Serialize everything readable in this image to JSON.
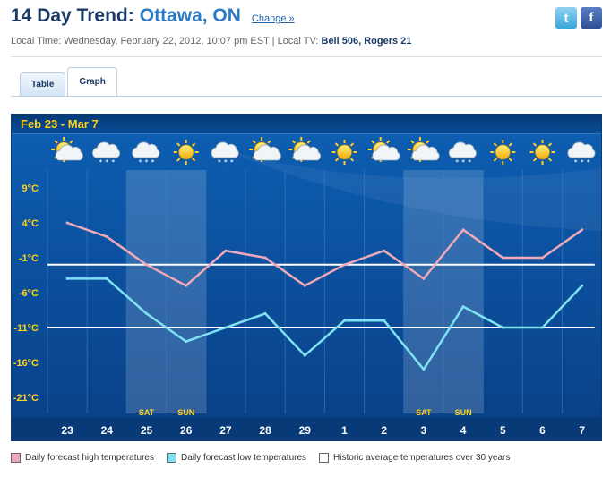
{
  "header": {
    "title_prefix": "14 Day Trend:",
    "city": "Ottawa, ON",
    "change_label": "Change »",
    "local_time": "Local Time: Wednesday, February 22, 2012, 10:07 pm EST  |  Local TV:",
    "local_tv": "Bell 506, Rogers 21"
  },
  "social": {
    "twitter_label": "t",
    "facebook_label": "f"
  },
  "tabs": [
    {
      "label": "Table",
      "active": false
    },
    {
      "label": "Graph",
      "active": true
    }
  ],
  "colors": {
    "chart_bg": "#0a4f9c",
    "high_line": "#f0a9b8",
    "low_line": "#7fe2f2",
    "avg_line": "#ffffff",
    "title_yellow": "#ffd21a",
    "weekend_label": "#ffd21a"
  },
  "chart_data": {
    "type": "line",
    "title": "Feb 23  -  Mar 7",
    "x": [
      "23",
      "24",
      "25",
      "26",
      "27",
      "28",
      "29",
      "1",
      "2",
      "3",
      "4",
      "5",
      "6",
      "7"
    ],
    "weekend_labels": [
      "",
      "",
      "SAT",
      "SUN",
      "",
      "",
      "",
      "",
      "",
      "SAT",
      "SUN",
      "",
      "",
      ""
    ],
    "icons": [
      "partly-cloudy-icon",
      "snow-icon",
      "snow-icon",
      "sun-icon",
      "snow-icon",
      "partly-cloudy-icon",
      "partly-cloudy-icon",
      "sun-icon",
      "partly-cloudy-icon",
      "partly-cloudy-icon",
      "snow-icon",
      "sun-icon",
      "sun-icon",
      "snow-icon"
    ],
    "y_ticks": [
      "9°C",
      "4°C",
      "-1°C",
      "-6°C",
      "-11°C",
      "-16°C",
      "-21°C"
    ],
    "ylim": [
      -21,
      9
    ],
    "series": [
      {
        "name": "Daily forecast high temperatures",
        "values": [
          4,
          2,
          -2,
          -5,
          0,
          -1,
          -5,
          -2,
          0,
          -4,
          3,
          -1,
          -1,
          3
        ]
      },
      {
        "name": "Daily forecast low temperatures",
        "values": [
          -4,
          -4,
          -9,
          -13,
          -11,
          -9,
          -15,
          -10,
          -10,
          -17,
          -8,
          -11,
          -11,
          -5
        ]
      }
    ],
    "historic_avg": {
      "high": -2,
      "low": -11
    },
    "grid": true
  },
  "legend": [
    {
      "label": "Daily forecast high temperatures",
      "color": "#f0a9b8"
    },
    {
      "label": "Daily forecast low temperatures",
      "color": "#7fe2f2"
    },
    {
      "label": "Historic average temperatures over 30 years",
      "color": "#ffffff"
    }
  ]
}
